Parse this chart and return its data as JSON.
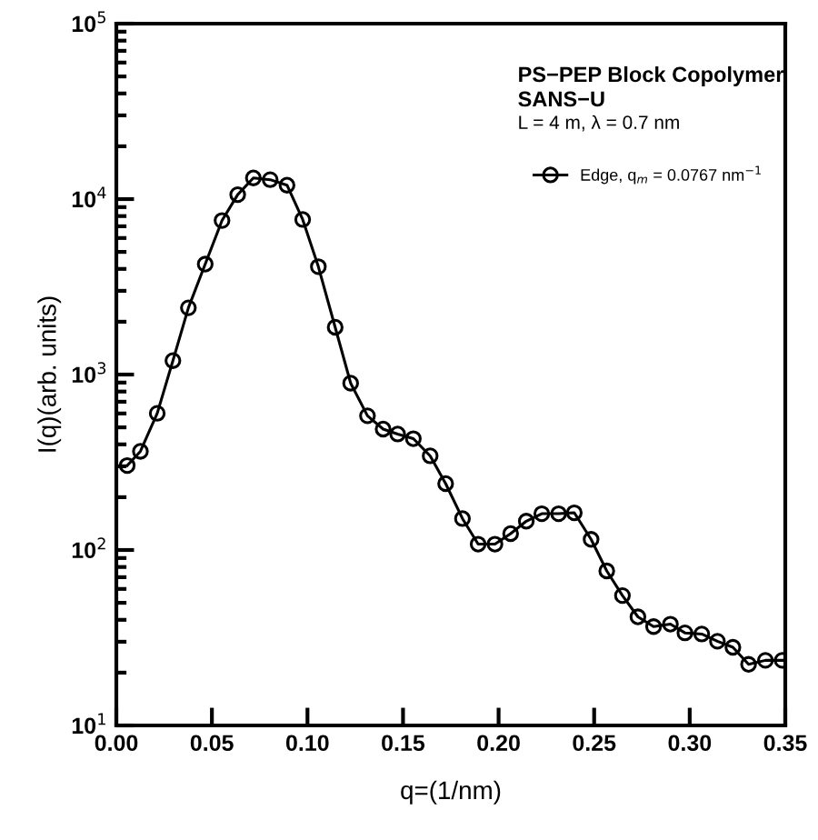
{
  "chart_data": {
    "type": "line",
    "title": "PS−PEP Block Copolymer",
    "subtitle": "SANS−U",
    "annotations": [
      "L = 4 m, λ = 0.7 nm"
    ],
    "xlabel": "q=(1/nm)",
    "ylabel": "I(q)(arb. units)",
    "x": [
      0.0057,
      0.0126,
      0.0214,
      0.0296,
      0.0377,
      0.0465,
      0.0553,
      0.0635,
      0.0717,
      0.0805,
      0.0893,
      0.0975,
      0.1057,
      0.1145,
      0.1226,
      0.1314,
      0.1396,
      0.1472,
      0.1554,
      0.1642,
      0.1723,
      0.1811,
      0.1893,
      0.1981,
      0.2063,
      0.2145,
      0.2226,
      0.2314,
      0.2396,
      0.2484,
      0.2566,
      0.2648,
      0.2729,
      0.2811,
      0.2899,
      0.2975,
      0.3063,
      0.3145,
      0.3226,
      0.3308,
      0.3396,
      0.3484
    ],
    "series": [
      {
        "name": "Edge, q$_{m}$ = 0.0767 nm$^{−1}$",
        "color": "#000000",
        "values": [
          303,
          365,
          601,
          1200,
          2400,
          4260,
          7550,
          10600,
          13200,
          12900,
          12000,
          7650,
          4120,
          1860,
          893,
          582,
          489,
          458,
          431,
          344,
          239,
          151,
          108,
          108,
          124,
          146,
          161,
          161,
          163,
          115,
          76,
          55,
          41.6,
          36.6,
          37.8,
          33.7,
          33.2,
          30.2,
          27.9,
          22.3,
          23.5,
          23.5
        ]
      }
    ],
    "log": "y",
    "xlim": [
      0,
      0.35
    ],
    "ylim": [
      10,
      100000
    ],
    "xticks": [
      {
        "value": 0,
        "label": "0.00"
      },
      {
        "value": 0.05,
        "label": "0.05"
      },
      {
        "value": 0.1,
        "label": "0.10"
      },
      {
        "value": 0.15,
        "label": "0.15"
      },
      {
        "value": 0.2,
        "label": "0.20"
      },
      {
        "value": 0.25,
        "label": "0.25"
      },
      {
        "value": 0.3,
        "label": "0.30"
      },
      {
        "value": 0.35,
        "label": "0.35"
      }
    ],
    "yticks": [
      {
        "value": 10,
        "label": "10$^{1}$"
      },
      {
        "value": 100,
        "label": "10$^{2}$"
      },
      {
        "value": 1000,
        "label": "10$^{3}$"
      },
      {
        "value": 10000,
        "label": "10$^{4}$"
      },
      {
        "value": 100000,
        "label": "10$^{5}$"
      }
    ],
    "marker": "circle",
    "line_style": "solid",
    "grid": false,
    "legend": "top right"
  }
}
